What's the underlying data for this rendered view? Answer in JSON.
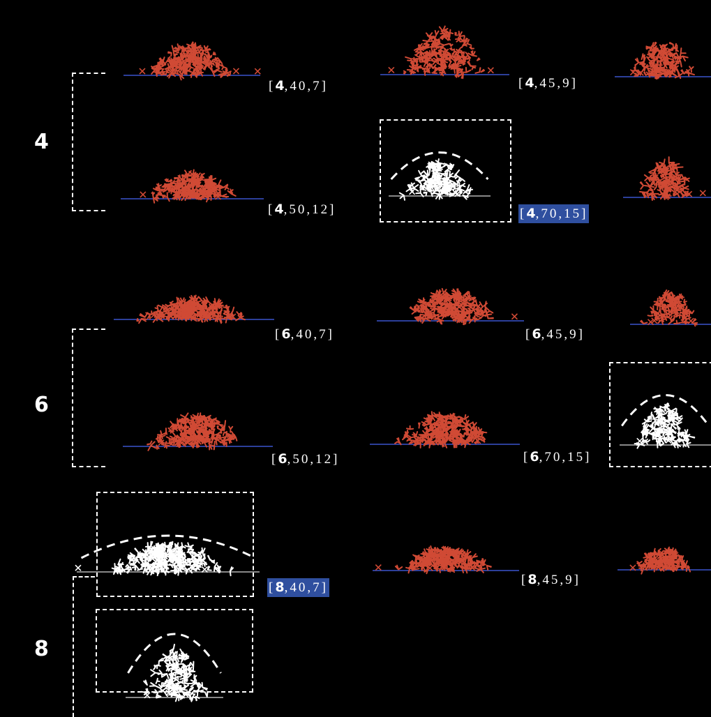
{
  "colors": {
    "background": "#000000",
    "pile": "#d04a35",
    "pile_selected": "#ffffff",
    "ground": "#2c3f9a",
    "highlight": "#2f4f9f",
    "frame": "#ffffff"
  },
  "rows": [
    {
      "label": "4",
      "cells": [
        {
          "params": [
            "4",
            "40",
            "7"
          ],
          "amount": 0.9,
          "selected": false
        },
        {
          "params": [
            "4",
            "45",
            "9"
          ],
          "amount": 1.0,
          "selected": false
        },
        {
          "params": [
            "4",
            "50",
            "12"
          ],
          "amount": 0.7,
          "selected": false
        },
        {
          "params": [
            "4",
            "70",
            "15"
          ],
          "amount": 1.0,
          "selected": true
        }
      ]
    },
    {
      "label": "6",
      "cells": [
        {
          "params": [
            "6",
            "40",
            "7"
          ],
          "amount": 0.6,
          "selected": false
        },
        {
          "params": [
            "6",
            "45",
            "9"
          ],
          "amount": 0.8,
          "selected": false
        },
        {
          "params": [
            "6",
            "50",
            "12"
          ],
          "amount": 1.0,
          "selected": false
        },
        {
          "params": [
            "6",
            "70",
            "15"
          ],
          "amount": 0.9,
          "selected": false
        }
      ]
    },
    {
      "label": "8",
      "cells": [
        {
          "params": [
            "8",
            "40",
            "7"
          ],
          "amount": 1.0,
          "selected": true
        },
        {
          "params": [
            "8",
            "45",
            "9"
          ],
          "amount": 0.6,
          "selected": false
        }
      ]
    }
  ]
}
